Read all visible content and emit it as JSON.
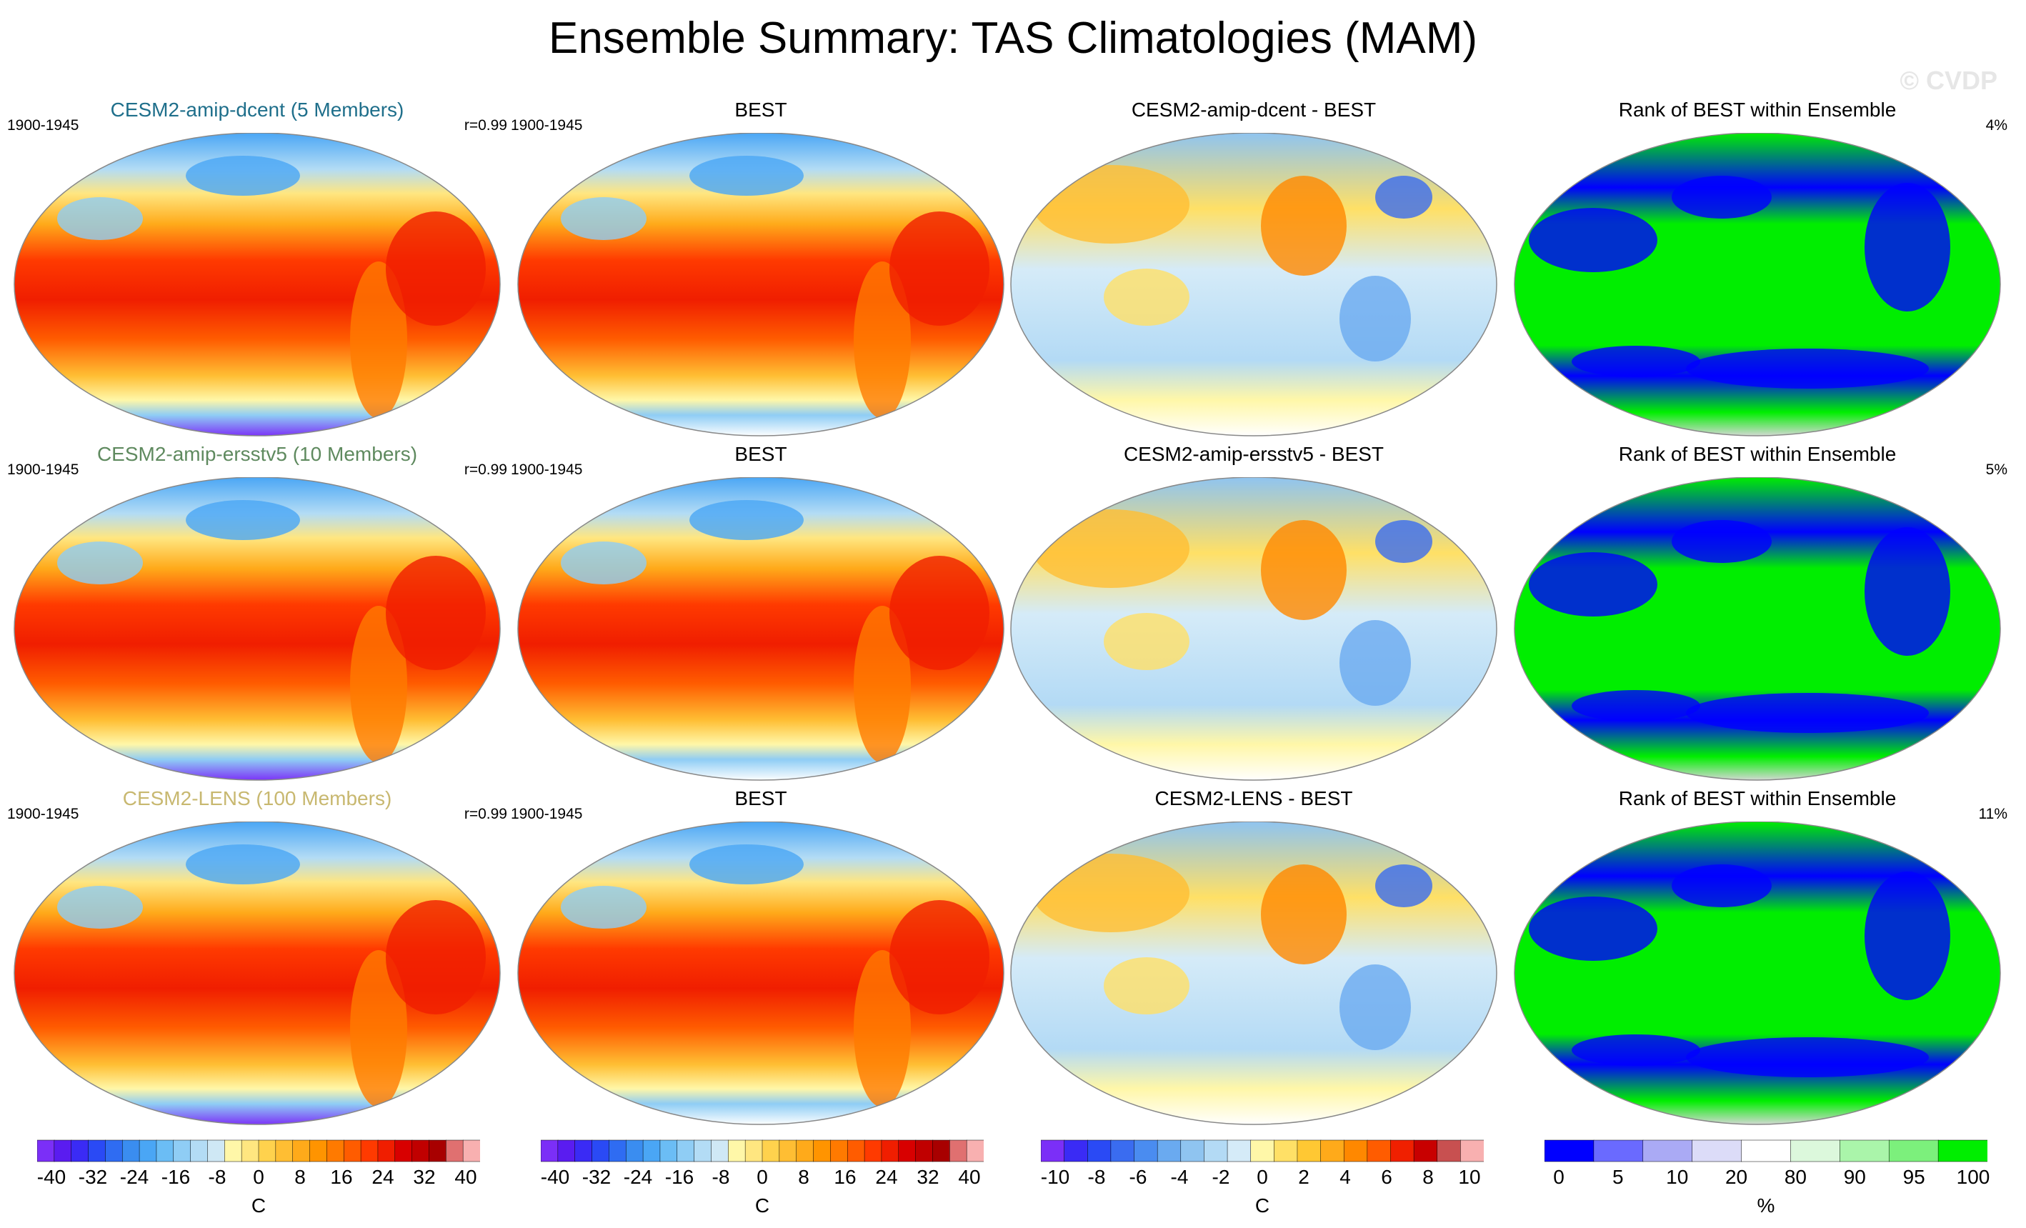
{
  "title": "Ensemble Summary: TAS Climatologies (MAM)",
  "watermark": "© CVDP",
  "rows": [
    {
      "model": {
        "title": "CESM2-amip-dcent (5 Members)",
        "title_color": "#1f6f8b",
        "period": "1900-1945",
        "r": "r=0.99"
      },
      "obs": {
        "title": "BEST",
        "period": "1900-1945"
      },
      "diff": {
        "title": "CESM2-amip-dcent - BEST"
      },
      "rank": {
        "title": "Rank of BEST within Ensemble",
        "pct": "4%"
      }
    },
    {
      "model": {
        "title": "CESM2-amip-ersstv5 (10 Members)",
        "title_color": "#5f8a5f",
        "period": "1900-1945",
        "r": "r=0.99"
      },
      "obs": {
        "title": "BEST",
        "period": "1900-1945"
      },
      "diff": {
        "title": "CESM2-amip-ersstv5 - BEST"
      },
      "rank": {
        "title": "Rank of BEST within Ensemble",
        "pct": "5%"
      }
    },
    {
      "model": {
        "title": "CESM2-LENS (100 Members)",
        "title_color": "#c8b870",
        "period": "1900-1945",
        "r": "r=0.99"
      },
      "obs": {
        "title": "BEST",
        "period": "1900-1945"
      },
      "diff": {
        "title": "CESM2-LENS - BEST"
      },
      "rank": {
        "title": "Rank of BEST within Ensemble",
        "pct": "11%"
      }
    }
  ],
  "colorbars": {
    "model": {
      "ticks": [
        "-40",
        "-32",
        "-24",
        "-16",
        "-8",
        "0",
        "8",
        "16",
        "24",
        "32",
        "40"
      ],
      "units": "C",
      "colors": [
        "#7b2ff7",
        "#5a1cf0",
        "#3a2bf5",
        "#2a4af5",
        "#2f6cf2",
        "#3a8df0",
        "#4aa6f5",
        "#6bbdf5",
        "#8fcdf5",
        "#b3dcf5",
        "#cfe8f5",
        "#fff7a8",
        "#ffe680",
        "#ffd24d",
        "#ffbe33",
        "#ffaa1a",
        "#ff9400",
        "#ff7a00",
        "#ff5c00",
        "#ff3a00",
        "#f01e00",
        "#d80000",
        "#c00000",
        "#a80000",
        "#e07070",
        "#f8b0b0"
      ]
    },
    "obs": {
      "ticks": [
        "-40",
        "-32",
        "-24",
        "-16",
        "-8",
        "0",
        "8",
        "16",
        "24",
        "32",
        "40"
      ],
      "units": "C",
      "colors": [
        "#7b2ff7",
        "#5a1cf0",
        "#3a2bf5",
        "#2a4af5",
        "#2f6cf2",
        "#3a8df0",
        "#4aa6f5",
        "#6bbdf5",
        "#8fcdf5",
        "#b3dcf5",
        "#cfe8f5",
        "#fff7a8",
        "#ffe680",
        "#ffd24d",
        "#ffbe33",
        "#ffaa1a",
        "#ff9400",
        "#ff7a00",
        "#ff5c00",
        "#ff3a00",
        "#f01e00",
        "#d80000",
        "#c00000",
        "#a80000",
        "#e07070",
        "#f8b0b0"
      ]
    },
    "diff": {
      "ticks": [
        "-10",
        "-8",
        "-6",
        "-4",
        "-2",
        "0",
        "2",
        "4",
        "6",
        "8",
        "10"
      ],
      "units": "C",
      "colors": [
        "#7b2ff7",
        "#3a2bf5",
        "#2a4af5",
        "#3a6cf0",
        "#4a8cf0",
        "#6aaaf0",
        "#8fc4f0",
        "#b3daf5",
        "#d5ebf8",
        "#fff7a8",
        "#ffe066",
        "#ffc833",
        "#ffaa1a",
        "#ff8800",
        "#ff5c00",
        "#f02000",
        "#c80000",
        "#c85050",
        "#f8b0b0"
      ]
    },
    "rank": {
      "ticks": [
        "0",
        "5",
        "10",
        "20",
        "80",
        "90",
        "95",
        "100"
      ],
      "units": "%",
      "colors": [
        "#0000ff",
        "#6a6aff",
        "#aaaaf5",
        "#dcdcf8",
        "#ffffff",
        "#dcf8dc",
        "#aaf5aa",
        "#7cf07c",
        "#00ee00"
      ]
    }
  }
}
